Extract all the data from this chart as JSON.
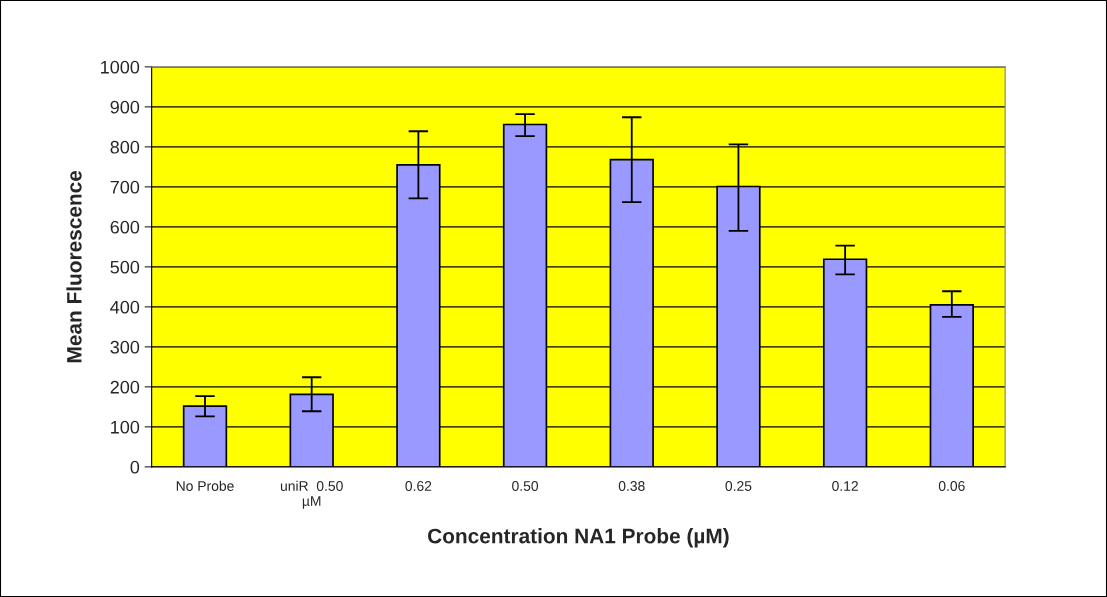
{
  "chart_data": {
    "type": "bar",
    "xlabel": "Concentration NA1 Probe (µM)",
    "ylabel": "Mean Fluorescence",
    "categories": [
      "No Probe",
      "uniR  0.50\nµM",
      "0.62",
      "0.50",
      "0.38",
      "0.25",
      "0.12",
      "0.06"
    ],
    "values": [
      152,
      181,
      755,
      856,
      768,
      701,
      519,
      405
    ],
    "errors": [
      [
        126,
        177
      ],
      [
        139,
        224
      ],
      [
        671,
        839
      ],
      [
        827,
        882
      ],
      [
        662,
        874
      ],
      [
        590,
        806
      ],
      [
        481,
        553
      ],
      [
        375,
        439
      ]
    ],
    "color": "#9999ff",
    "ylim": [
      0,
      1000
    ],
    "yticks": [
      0,
      100,
      200,
      300,
      400,
      500,
      600,
      700,
      800,
      900,
      1000
    ],
    "grid": "y",
    "legend": false
  }
}
